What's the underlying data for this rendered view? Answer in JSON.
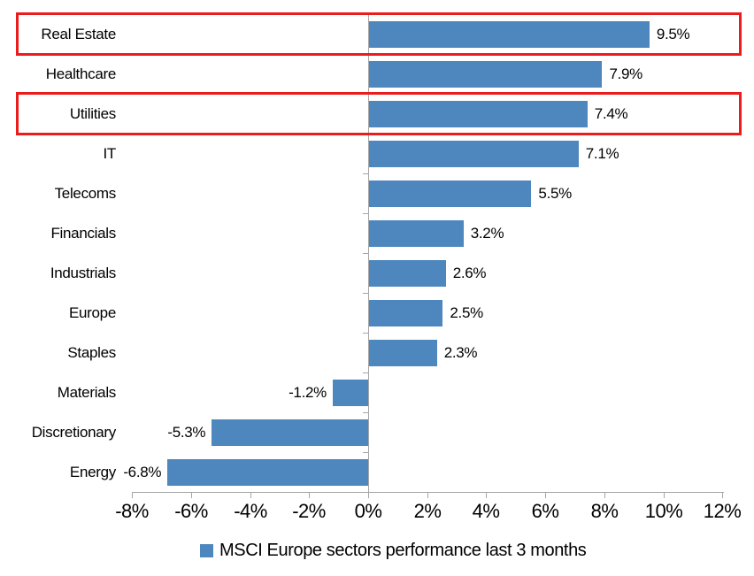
{
  "chart_data": {
    "type": "bar",
    "orientation": "horizontal",
    "title": "",
    "xlabel": "",
    "ylabel": "",
    "categories": [
      "Real Estate",
      "Healthcare",
      "Utilities",
      "IT",
      "Telecoms",
      "Financials",
      "Industrials",
      "Europe",
      "Staples",
      "Materials",
      "Discretionary",
      "Energy"
    ],
    "values": [
      9.5,
      7.9,
      7.4,
      7.1,
      5.5,
      3.2,
      2.6,
      2.5,
      2.3,
      -1.2,
      -5.3,
      -6.8
    ],
    "value_labels": [
      "9.5%",
      "7.9%",
      "7.4%",
      "7.1%",
      "5.5%",
      "3.2%",
      "2.6%",
      "2.5%",
      "2.3%",
      "-1.2%",
      "-5.3%",
      "-6.8%"
    ],
    "xlim": [
      -8,
      12
    ],
    "x_tick_values": [
      -8,
      -6,
      -4,
      -2,
      0,
      2,
      4,
      6,
      8,
      10,
      12
    ],
    "x_tick_labels": [
      "-8%",
      "-6%",
      "-4%",
      "-2%",
      "0%",
      "2%",
      "4%",
      "6%",
      "8%",
      "10%",
      "12%"
    ],
    "grid": false,
    "legend_position": "bottom",
    "legend": [
      {
        "label": "MSCI Europe sectors performance last 3 months",
        "color": "#4E86BE"
      }
    ],
    "bar_color": "#4E86BE",
    "axis_color": "#A6A6A6",
    "text_color": "#000000",
    "highlight_color": "#EC1C1C",
    "highlighted_categories": [
      "Real Estate",
      "Utilities"
    ]
  }
}
